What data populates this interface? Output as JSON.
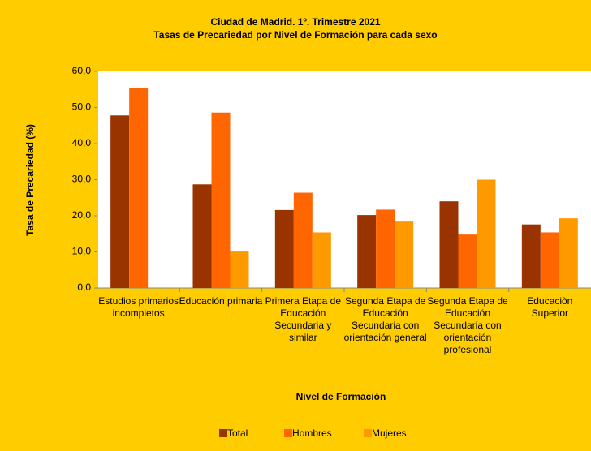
{
  "chart_data": {
    "type": "bar",
    "title": "Ciudad de Madrid. 1º. Trimestre 2021",
    "subtitle": "Tasas de Precariedad por Nivel de Formación para cada sexo",
    "x_label": "Nivel de Formación",
    "y_label": "Tasa de Precariedad (%)",
    "categories": [
      "Estudios primarios incompletos",
      "Educación primaria",
      "Primera Etapa de Educación Secundaria y similar",
      "Segunda Etapa de Educación Secundaria con orientación general",
      "Segunda Etapa de Educación Secundaria con orientación profesional",
      "Educaciòn Superior"
    ],
    "series": [
      {
        "name": "Total",
        "color": "#993300",
        "values": [
          47.8,
          28.7,
          21.6,
          20.2,
          24.0,
          17.6
        ]
      },
      {
        "name": "Hombres",
        "color": "#ff6600",
        "values": [
          55.5,
          48.6,
          26.4,
          21.7,
          14.8,
          15.4
        ]
      },
      {
        "name": "Mujeres",
        "color": "#ff9900",
        "values": [
          null,
          10.1,
          15.4,
          18.4,
          30.0,
          19.3
        ]
      }
    ],
    "ylim": [
      0,
      60
    ],
    "yticks": [
      {
        "value": 0,
        "label": "0,0"
      },
      {
        "value": 10,
        "label": "10,0"
      },
      {
        "value": 20,
        "label": "20,0"
      },
      {
        "value": 30,
        "label": "30,0"
      },
      {
        "value": 40,
        "label": "40,0"
      },
      {
        "value": 50,
        "label": "50,0"
      },
      {
        "value": 60,
        "label": "60,0"
      }
    ],
    "grid": false,
    "legend": "bottom"
  }
}
